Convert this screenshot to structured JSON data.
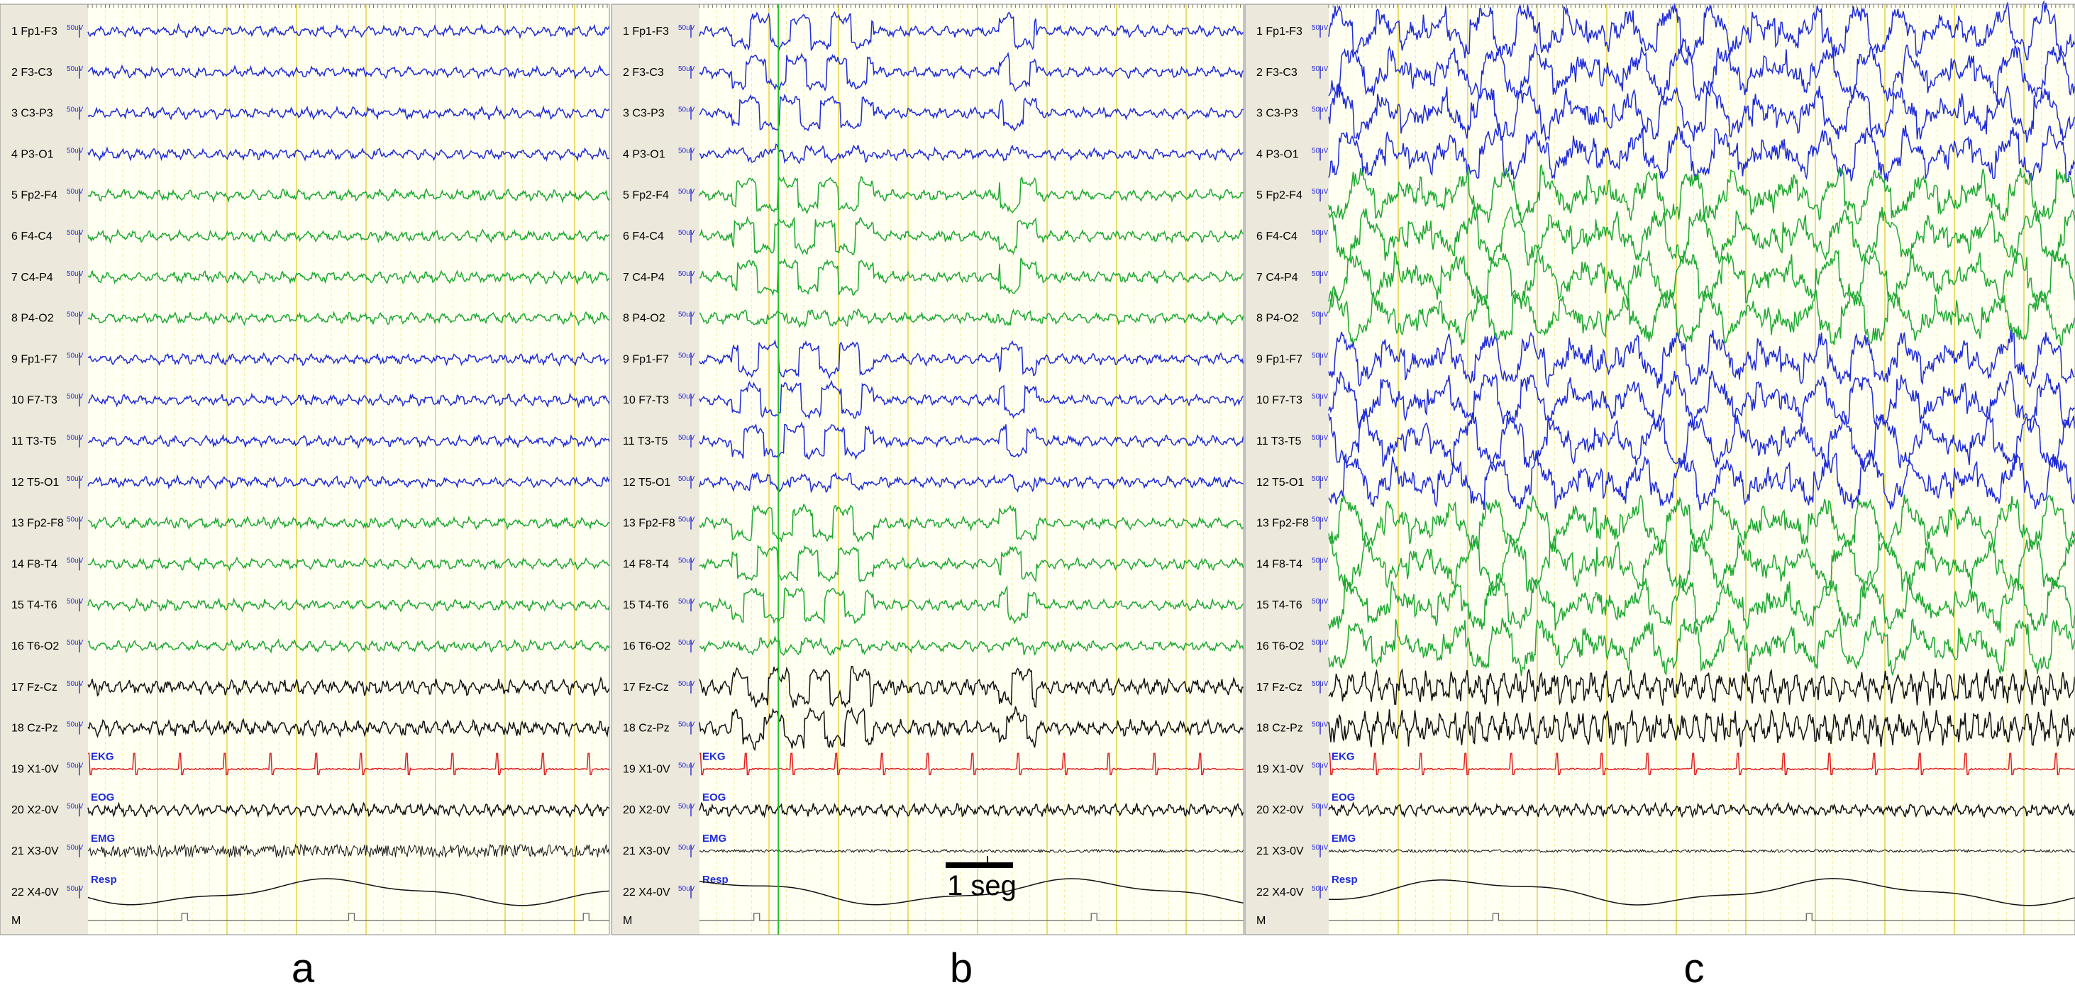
{
  "figure": {
    "panel_letters": [
      "a",
      "b",
      "c"
    ],
    "scale_bar": {
      "label": "1 seg"
    },
    "marker_row_label": "M",
    "unit_text": "50uV"
  },
  "channels": [
    {
      "num": "1",
      "name": "Fp1-F3",
      "color": "#1f2bd6"
    },
    {
      "num": "2",
      "name": "F3-C3",
      "color": "#1f2bd6"
    },
    {
      "num": "3",
      "name": "C3-P3",
      "color": "#1f2bd6"
    },
    {
      "num": "4",
      "name": "P3-O1",
      "color": "#1f2bd6"
    },
    {
      "num": "5",
      "name": "Fp2-F4",
      "color": "#1ea832"
    },
    {
      "num": "6",
      "name": "F4-C4",
      "color": "#1ea832"
    },
    {
      "num": "7",
      "name": "C4-P4",
      "color": "#1ea832"
    },
    {
      "num": "8",
      "name": "P4-O2",
      "color": "#1ea832"
    },
    {
      "num": "9",
      "name": "Fp1-F7",
      "color": "#1f2bd6"
    },
    {
      "num": "10",
      "name": "F7-T3",
      "color": "#1f2bd6"
    },
    {
      "num": "11",
      "name": "T3-T5",
      "color": "#1f2bd6"
    },
    {
      "num": "12",
      "name": "T5-O1",
      "color": "#1f2bd6"
    },
    {
      "num": "13",
      "name": "Fp2-F8",
      "color": "#1ea832"
    },
    {
      "num": "14",
      "name": "F8-T4",
      "color": "#1ea832"
    },
    {
      "num": "15",
      "name": "T4-T6",
      "color": "#1ea832"
    },
    {
      "num": "16",
      "name": "T6-O2",
      "color": "#1ea832"
    },
    {
      "num": "17",
      "name": "Fz-Cz",
      "color": "#111111"
    },
    {
      "num": "18",
      "name": "Cz-Pz",
      "color": "#111111"
    },
    {
      "num": "19",
      "name": "X1-0V",
      "color": "#e02020",
      "aux": "EKG"
    },
    {
      "num": "20",
      "name": "X2-0V",
      "color": "#111111",
      "aux": "EOG"
    },
    {
      "num": "21",
      "name": "X3-0V",
      "color": "#111111",
      "aux": "EMG"
    },
    {
      "num": "22",
      "name": "X4-0V",
      "color": "#111111",
      "aux": "Resp"
    }
  ],
  "colors": {
    "label_column_bg": "#ece9dc",
    "trace_area_bg": "#fffff2",
    "grid_major": "#e8d650",
    "grid_minor": "#f4eba0",
    "left_montage": "#1f2bd6",
    "right_montage": "#1ea832",
    "ekg": "#e02020",
    "event_line": "#28c028"
  }
}
